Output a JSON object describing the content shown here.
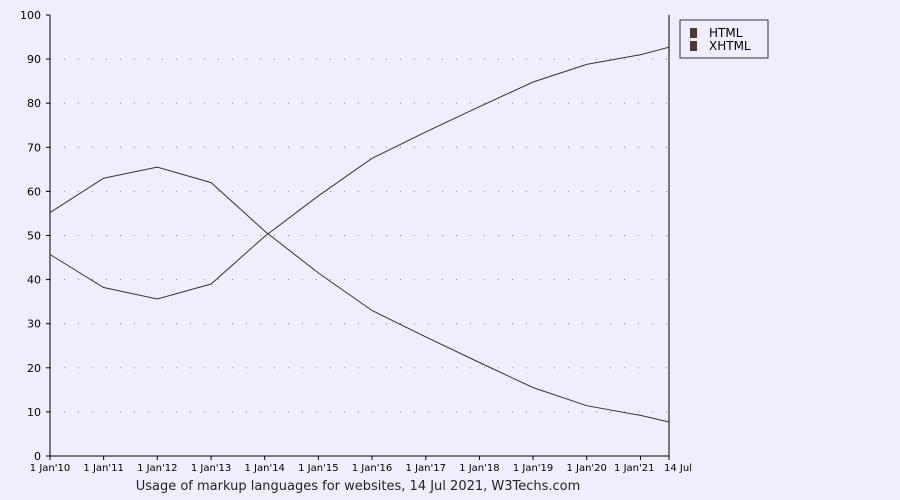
{
  "chart_data": {
    "type": "line",
    "title": "",
    "caption": "Usage of markup languages for websites, 14 Jul 2021, W3Techs.com",
    "xlabel": "",
    "ylabel": "",
    "x": [
      "1 Jan'10",
      "1 Jan'11",
      "1 Jan'12",
      "1 Jan'13",
      "1 Jan'14",
      "1 Jan'15",
      "1 Jan'16",
      "1 Jan'17",
      "1 Jan'18",
      "1 Jan'19",
      "1 Jan'20",
      "1 Jan'21",
      "14 Jul"
    ],
    "ylim": [
      0,
      100
    ],
    "yticks": [
      0,
      10,
      20,
      30,
      40,
      50,
      60,
      70,
      80,
      90,
      100
    ],
    "grid": true,
    "legend_position": "top-right",
    "colors": {
      "background": "#f0eefc",
      "line": "#333333",
      "axis": "#000000",
      "legend_swatch": "#4a3a33",
      "grid_dot": "#555555"
    },
    "series": [
      {
        "name": "HTML",
        "values": [
          [
            "1 Jan'10",
            45.7
          ],
          [
            "1 Jan'11",
            38.2
          ],
          [
            "1 Jan'12",
            35.6
          ],
          [
            "1 Jan'13",
            39.0
          ],
          [
            "1 Jan'14",
            49.8
          ],
          [
            "1 Jan'15",
            59.0
          ],
          [
            "1 Jan'16",
            67.5
          ],
          [
            "1 Jan'17",
            73.5
          ],
          [
            "1 Jan'18",
            79.2
          ],
          [
            "1 Jan'19",
            84.8
          ],
          [
            "1 Jan'20",
            88.8
          ],
          [
            "1 Jan'21",
            91.0
          ],
          [
            "14 Jul",
            92.7
          ]
        ]
      },
      {
        "name": "XHTML",
        "values": [
          [
            "1 Jan'10",
            55.2
          ],
          [
            "1 Jan'11",
            63.0
          ],
          [
            "1 Jan'12",
            65.5
          ],
          [
            "1 Jan'13",
            62.0
          ],
          [
            "1 Jan'14",
            51.0
          ],
          [
            "1 Jan'15",
            41.5
          ],
          [
            "1 Jan'16",
            33.0
          ],
          [
            "1 Jan'17",
            27.0
          ],
          [
            "1 Jan'18",
            21.2
          ],
          [
            "1 Jan'19",
            15.5
          ],
          [
            "1 Jan'20",
            11.4
          ],
          [
            "1 Jan'21",
            9.2
          ],
          [
            "14 Jul",
            7.7
          ]
        ]
      }
    ]
  }
}
